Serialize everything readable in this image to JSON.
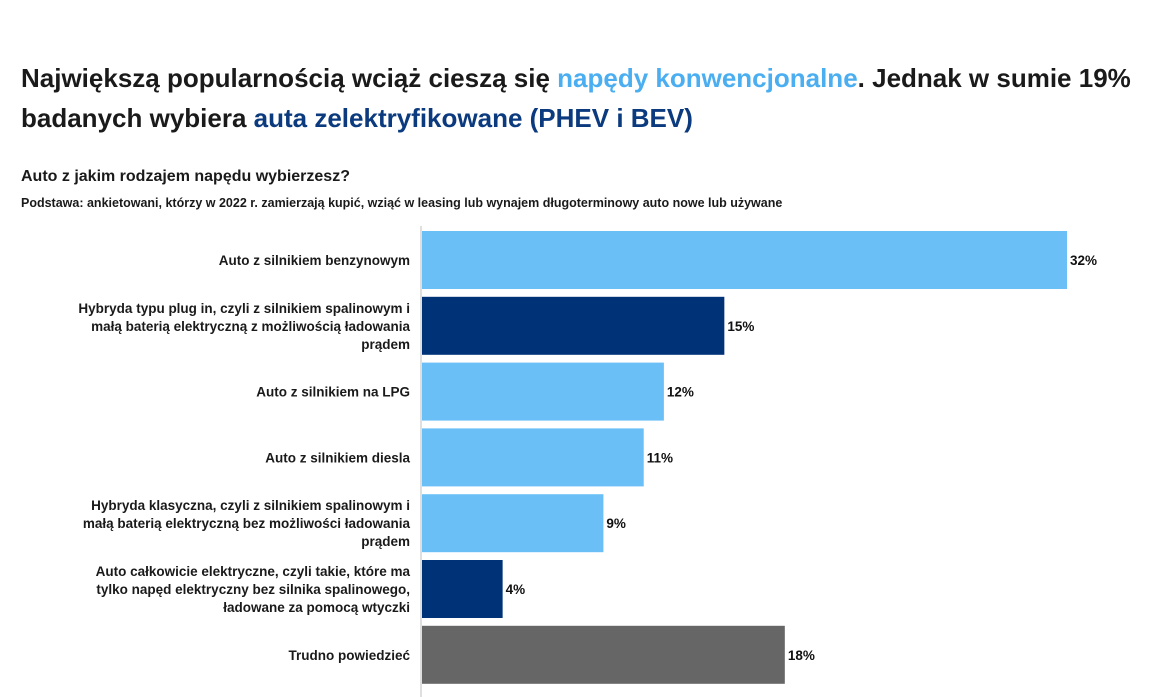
{
  "headline": {
    "part1": "Największą popularnością wciąż cieszą się ",
    "highlight1": "napędy konwencjonalne",
    "part2": ". Jednak w sumie 19% badanych wybiera ",
    "highlight2": "auta zelektryfikowane (PHEV i BEV)"
  },
  "question": "Auto z jakim rodzajem napędu wybierzesz?",
  "base_note": "Podstawa: ankietowani, którzy w 2022 r. zamierzają kupić, wziąć w leasing lub wynajem długoterminowy auto nowe lub używane",
  "colors": {
    "light_blue": "#6bbff7",
    "dark_blue": "#003277",
    "gray": "#666666",
    "axis": "#bfbfbf"
  },
  "chart_data": {
    "type": "bar",
    "orientation": "horizontal",
    "categories": [
      [
        "Auto z silnikiem benzynowym"
      ],
      [
        "Hybryda typu plug in, czyli z silnikiem spalinowym i",
        "małą baterią elektryczną z możliwością ładowania",
        "prądem"
      ],
      [
        "Auto z silnikiem na LPG"
      ],
      [
        "Auto z silnikiem diesla"
      ],
      [
        "Hybryda klasyczna, czyli z silnikiem spalinowym i",
        "małą baterią elektryczną bez możliwości ładowania",
        "prądem"
      ],
      [
        "Auto całkowicie elektryczne, czyli takie, które ma",
        "tylko napęd elektryczny bez silnika spalinowego,",
        "ładowane za pomocą wtyczki"
      ],
      [
        "Trudno powiedzieć"
      ]
    ],
    "values": [
      32,
      15,
      12,
      11,
      9,
      4,
      18
    ],
    "value_labels": [
      "32%",
      "15%",
      "12%",
      "11%",
      "9%",
      "4%",
      "18%"
    ],
    "bar_colors": [
      "light_blue",
      "dark_blue",
      "light_blue",
      "light_blue",
      "light_blue",
      "dark_blue",
      "gray"
    ],
    "xlim": [
      0,
      32
    ],
    "grid": false,
    "legend": "none"
  }
}
